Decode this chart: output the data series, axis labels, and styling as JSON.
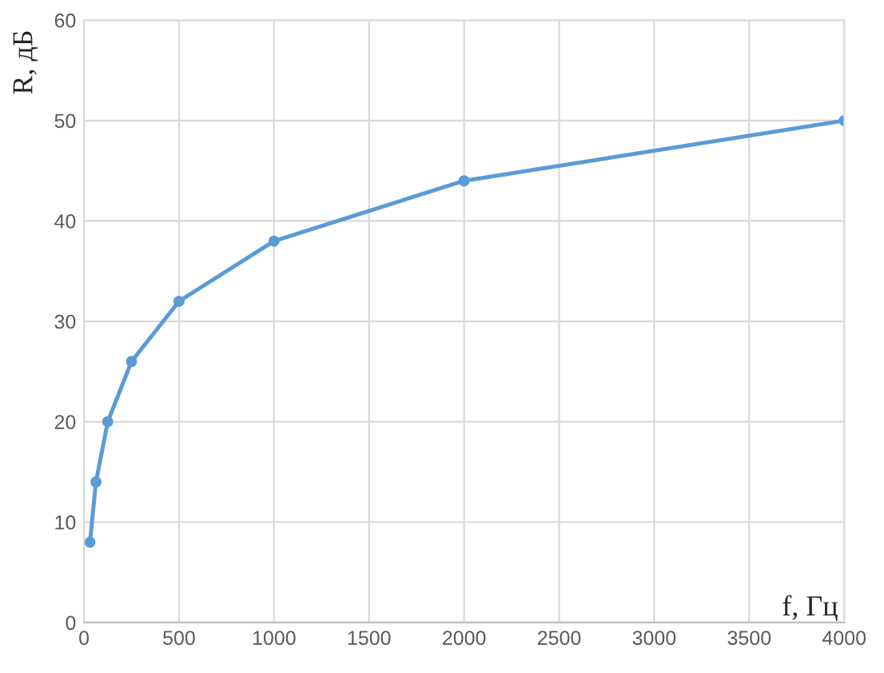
{
  "chart_data": {
    "type": "line",
    "xlabel": "f, Гц",
    "ylabel": "R, дБ",
    "x": [
      31.5,
      63,
      125,
      250,
      500,
      1000,
      2000,
      4000
    ],
    "series": [
      {
        "color": "#5b9bd5",
        "values": [
          8,
          14,
          20,
          26,
          32,
          38,
          44,
          50
        ]
      }
    ],
    "xlim": [
      0,
      4000
    ],
    "xticks": [
      0,
      500,
      1000,
      1500,
      2000,
      2500,
      3000,
      3500,
      4000
    ],
    "ylim": [
      0,
      60
    ],
    "yticks": [
      0,
      10,
      20,
      30,
      40,
      50,
      60
    ],
    "grid": true,
    "marker": "circle",
    "line_style": "solid"
  }
}
